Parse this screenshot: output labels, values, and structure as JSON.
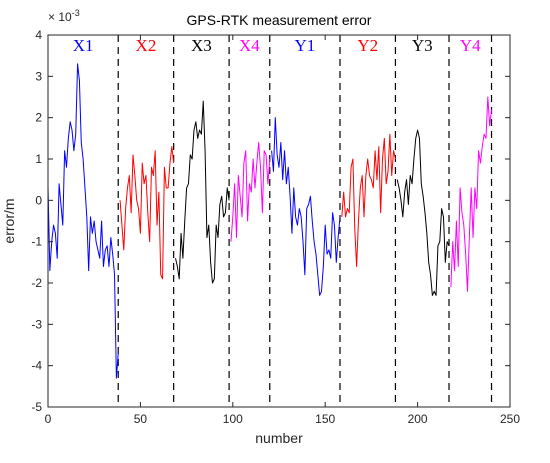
{
  "chart_data": {
    "type": "line",
    "title": "GPS-RTK measurement error",
    "xlabel": "number",
    "ylabel": "error/m",
    "y_exponent_label": {
      "base": "× 10",
      "exponent": "-3"
    },
    "xlim": [
      0,
      250
    ],
    "ylim": [
      -5,
      4
    ],
    "x_ticks": [
      "0",
      "50",
      "100",
      "150",
      "200",
      "250"
    ],
    "y_ticks": [
      "-5",
      "-4",
      "-3",
      "-2",
      "-1",
      "0",
      "1",
      "2",
      "3",
      "4"
    ],
    "grid": false,
    "divider_lines_x": [
      38,
      68,
      98,
      120,
      158,
      188,
      217,
      240
    ],
    "segments": [
      {
        "label": "X1",
        "color": "#0000ff",
        "x": [
          0,
          1,
          2,
          3,
          4,
          5,
          6,
          7,
          8,
          9,
          10,
          11,
          12,
          13,
          14,
          15,
          16,
          17,
          18,
          19,
          20,
          21,
          22,
          23,
          24,
          25,
          26,
          27,
          28,
          29,
          30,
          31,
          32,
          33,
          34,
          35,
          36,
          37,
          38
        ],
        "values": [
          0.35,
          -1.7,
          -1.0,
          -0.6,
          -0.8,
          -1.4,
          0.4,
          -0.1,
          -0.6,
          1.2,
          0.8,
          1.5,
          1.9,
          1.7,
          1.2,
          1.6,
          3.3,
          2.9,
          1.4,
          1.0,
          0.3,
          -0.4,
          -1.7,
          -0.4,
          -0.8,
          -0.5,
          -1.0,
          -1.2,
          -1.4,
          -0.5,
          -1.6,
          -1.2,
          -1.1,
          -1.6,
          -0.9,
          -1.3,
          -1.8,
          -4.3,
          -3.7
        ]
      },
      {
        "label": "X2",
        "color": "#ff0000",
        "x": [
          39,
          40,
          41,
          42,
          43,
          44,
          45,
          46,
          47,
          48,
          49,
          50,
          51,
          52,
          53,
          54,
          55,
          56,
          57,
          58,
          59,
          60,
          61,
          62,
          63,
          64,
          65,
          66,
          67,
          68
        ],
        "values": [
          0.0,
          -0.6,
          -1.2,
          -0.2,
          0.3,
          0.6,
          -0.3,
          1.1,
          0.6,
          0.0,
          -0.2,
          -0.8,
          0.9,
          0.4,
          0.6,
          -0.3,
          -1.0,
          0.8,
          0.6,
          1.2,
          -0.6,
          0.2,
          -1.8,
          -1.9,
          0.8,
          0.3,
          0.3,
          0.9,
          1.3,
          0.9
        ]
      },
      {
        "label": "X3",
        "color": "#000000",
        "x": [
          69,
          70,
          71,
          72,
          73,
          74,
          75,
          76,
          77,
          78,
          79,
          80,
          81,
          82,
          83,
          84,
          85,
          86,
          87,
          88,
          89,
          90,
          91,
          92,
          93,
          94,
          95,
          96,
          97,
          98
        ],
        "values": [
          -1.4,
          -1.6,
          -1.9,
          -0.8,
          -1.4,
          -0.5,
          0.3,
          0.4,
          1.1,
          1.0,
          1.7,
          1.9,
          1.5,
          1.7,
          1.6,
          2.4,
          1.2,
          -0.9,
          -0.6,
          -1.5,
          -2.0,
          -1.9,
          -0.6,
          -0.9,
          -0.1,
          0.1,
          -0.4,
          -0.3,
          0.3,
          0.0
        ]
      },
      {
        "label": "X4",
        "color": "#ff00ff",
        "x": [
          99,
          100,
          101,
          102,
          103,
          104,
          105,
          106,
          107,
          108,
          109,
          110,
          111,
          112,
          113,
          114,
          115,
          116,
          117,
          118,
          119,
          120
        ],
        "values": [
          -1.0,
          -0.4,
          0.4,
          -0.9,
          0.6,
          0.1,
          -0.4,
          0.9,
          1.2,
          -0.5,
          0.4,
          0.2,
          1.0,
          0.3,
          0.9,
          1.4,
          0.8,
          -0.3,
          1.2,
          1.1,
          0.4,
          1.0
        ]
      },
      {
        "label": "Y1",
        "color": "#0000ff",
        "x": [
          121,
          122,
          123,
          124,
          125,
          126,
          127,
          128,
          129,
          130,
          131,
          132,
          133,
          134,
          135,
          136,
          137,
          138,
          139,
          140,
          141,
          142,
          143,
          144,
          145,
          146,
          147,
          148,
          149,
          150,
          151,
          152,
          153,
          154,
          155,
          156,
          157,
          158
        ],
        "values": [
          1.2,
          0.7,
          2.0,
          1.1,
          0.8,
          1.4,
          0.5,
          1.2,
          0.4,
          0.8,
          0.1,
          -0.8,
          0.3,
          -0.4,
          -0.6,
          -0.2,
          -0.4,
          -1.0,
          -1.8,
          -0.2,
          -0.1,
          0.1,
          -0.5,
          -1.0,
          -1.3,
          -1.8,
          -2.3,
          -2.2,
          -1.6,
          -0.6,
          -1.3,
          -1.2,
          -1.4,
          -0.3,
          -0.6,
          -1.5,
          -0.9,
          -0.4
        ]
      },
      {
        "label": "Y2",
        "color": "#ff0000",
        "x": [
          159,
          160,
          161,
          162,
          163,
          164,
          165,
          166,
          167,
          168,
          169,
          170,
          171,
          172,
          173,
          174,
          175,
          176,
          177,
          178,
          179,
          180,
          181,
          182,
          183,
          184,
          185,
          186,
          187,
          188
        ],
        "values": [
          -0.4,
          0.2,
          -0.4,
          -0.2,
          -0.3,
          0.8,
          1.0,
          -0.7,
          -1.6,
          -0.5,
          0.3,
          0.6,
          -0.4,
          0.6,
          1.0,
          0.6,
          0.5,
          0.3,
          1.2,
          0.5,
          1.3,
          -0.3,
          1.0,
          1.5,
          0.4,
          0.7,
          1.6,
          0.6,
          1.2,
          1.0
        ]
      },
      {
        "label": "Y3",
        "color": "#000000",
        "x": [
          189,
          190,
          191,
          192,
          193,
          194,
          195,
          196,
          197,
          198,
          199,
          200,
          201,
          202,
          203,
          204,
          205,
          206,
          207,
          208,
          209,
          210,
          211,
          212,
          213,
          214,
          215,
          216,
          217
        ],
        "values": [
          0.5,
          0.3,
          0.0,
          -0.4,
          0.2,
          0.5,
          -0.1,
          0.6,
          0.4,
          1.0,
          1.5,
          1.7,
          1.5,
          0.4,
          0.1,
          -0.3,
          -0.8,
          -1.5,
          -1.8,
          -2.3,
          -2.2,
          -2.3,
          -1.1,
          -1.0,
          -0.2,
          -0.4,
          -1.5,
          -1.0,
          -1.1
        ]
      },
      {
        "label": "Y4",
        "color": "#ff00ff",
        "x": [
          218,
          219,
          220,
          221,
          222,
          223,
          224,
          225,
          226,
          227,
          228,
          229,
          230,
          231,
          232,
          233,
          234,
          235,
          236,
          237,
          238,
          239,
          240
        ],
        "values": [
          -2.1,
          -1.0,
          -1.7,
          -0.5,
          -1.6,
          0.3,
          -0.3,
          -0.6,
          -1.3,
          -2.2,
          -0.9,
          0.3,
          -0.9,
          0.3,
          -0.2,
          1.2,
          0.9,
          1.3,
          1.6,
          1.5,
          2.5,
          1.8,
          2.2
        ]
      }
    ]
  }
}
